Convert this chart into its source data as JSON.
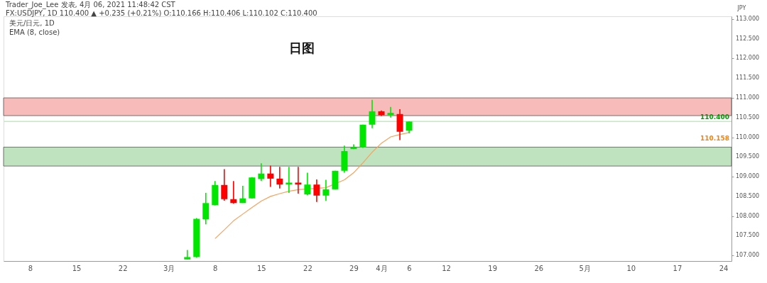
{
  "chart_data": {
    "type": "candlestick",
    "title": "日图",
    "annotations": [
      "Trader_Joe_Lee 发表, 4月 06, 2021 11:48:42 CST",
      "FX:USDJPY, 1D 110.400 ▲ +0.235 (+0.21%) O:110.166 H:110.406 L:110.102 C:110.400",
      "美元/日元, 1D",
      "EMA (8, close)",
      "110.158"
    ],
    "ylabel": "JPY",
    "categories": [
      null,
      null,
      "8",
      null,
      null,
      null,
      null,
      "15",
      null,
      null,
      null,
      null,
      "22",
      null,
      null,
      null,
      null,
      "3月",
      null,
      null,
      null,
      null,
      "8",
      null,
      null,
      null,
      null,
      "15",
      null,
      null,
      null,
      null,
      "22",
      null,
      null,
      null,
      null,
      "29",
      null,
      null,
      "4月",
      null,
      null,
      "6",
      null,
      null,
      null,
      "12",
      null,
      null,
      null,
      null,
      "19",
      null,
      null,
      null,
      null,
      "26",
      null,
      null,
      null,
      null,
      "5月",
      null,
      null,
      null,
      null,
      "10",
      null,
      null,
      null,
      null,
      "17",
      null,
      null,
      null,
      null,
      "24"
    ],
    "series": [
      {
        "ohlc": [
          null,
          null,
          null,
          null,
          null,
          null,
          null,
          null,
          null,
          null,
          null,
          null,
          null,
          null,
          null,
          null,
          null,
          null,
          null,
          [
            106.9,
            107.14,
            106.9,
            106.96
          ],
          [
            106.96,
            107.95,
            106.95,
            107.93
          ],
          [
            107.92,
            108.59,
            107.79,
            108.33
          ],
          [
            108.28,
            108.89,
            108.27,
            108.79
          ],
          [
            108.79,
            109.19,
            108.39,
            108.43
          ],
          [
            108.43,
            108.89,
            108.32,
            108.33
          ],
          [
            108.33,
            108.77,
            108.33,
            108.45
          ],
          [
            108.45,
            108.99,
            108.45,
            108.98
          ],
          [
            108.94,
            109.34,
            108.89,
            109.08
          ],
          [
            109.08,
            109.28,
            108.74,
            108.95
          ],
          [
            108.95,
            109.25,
            108.7,
            108.8
          ],
          [
            108.8,
            109.25,
            108.59,
            108.85
          ],
          [
            108.85,
            109.25,
            108.57,
            108.8
          ],
          [
            108.55,
            109.1,
            108.53,
            108.8
          ],
          [
            108.8,
            108.93,
            108.36,
            108.52
          ],
          [
            108.52,
            108.92,
            108.39,
            108.68
          ],
          [
            108.68,
            109.15,
            108.68,
            109.15
          ],
          [
            109.15,
            109.79,
            109.1,
            109.65
          ],
          [
            109.7,
            109.82,
            109.7,
            109.74
          ],
          [
            109.74,
            110.32,
            109.73,
            110.32
          ],
          [
            110.32,
            110.95,
            110.23,
            110.66
          ],
          [
            110.66,
            110.68,
            110.54,
            110.56
          ],
          [
            110.56,
            110.77,
            110.5,
            110.62
          ],
          [
            110.59,
            110.71,
            109.93,
            110.14
          ],
          [
            110.166,
            110.406,
            110.102,
            110.4
          ],
          null,
          null,
          null,
          null,
          null,
          null,
          null,
          null,
          null,
          null,
          null,
          null,
          null,
          null,
          null,
          null,
          null,
          null,
          null,
          null,
          null,
          null,
          null,
          null,
          null,
          null,
          null,
          null,
          null,
          null,
          null,
          null,
          null,
          null
        ],
        "colors": [
          null,
          null,
          null,
          null,
          null,
          null,
          null,
          null,
          null,
          null,
          null,
          null,
          null,
          null,
          null,
          null,
          null,
          null,
          null,
          "#00e600",
          "#00e600",
          "#00e600",
          "#00e600",
          "#ff0000",
          "#ff0000",
          "#00e600",
          "#00e600",
          "#00e600",
          "#ff0000",
          "#ff0000",
          "#00e600",
          "#ff0000",
          "#00e600",
          "#ff0000",
          "#00e600",
          "#00e600",
          "#00e600",
          "#00e600",
          "#00e600",
          "#00e600",
          "#ff0000",
          "#00e600",
          "#ff0000",
          "#00e600",
          null,
          null,
          null,
          null,
          null,
          null,
          null,
          null,
          null,
          null,
          null,
          null,
          null,
          null,
          null,
          null,
          null,
          null,
          null,
          null,
          null,
          null,
          null,
          null,
          null,
          null,
          null,
          null,
          null,
          null,
          null,
          null,
          null,
          null
        ]
      },
      {
        "type": "line",
        "color": "#f5a25d",
        "values": [
          null,
          null,
          null,
          null,
          null,
          null,
          null,
          null,
          null,
          null,
          null,
          null,
          null,
          null,
          null,
          null,
          null,
          null,
          null,
          null,
          null,
          null,
          107.43,
          107.65,
          107.88,
          108.05,
          108.22,
          108.38,
          108.5,
          108.57,
          108.63,
          108.67,
          null,
          null,
          108.72,
          null,
          108.92,
          109.1,
          109.35,
          109.62,
          109.85,
          110.01,
          110.07,
          110.12,
          null,
          null,
          null,
          null,
          null,
          null,
          null,
          null,
          null,
          null,
          null,
          null,
          null,
          null,
          null,
          null,
          null,
          null,
          null,
          null,
          null,
          null,
          null,
          null,
          null,
          null,
          null,
          null,
          null,
          null,
          null,
          null,
          null,
          null
        ]
      }
    ],
    "ylim": [
      106.86,
      113.07
    ],
    "yticks": [
      {
        "value": 107,
        "label": "107.000"
      },
      {
        "value": 107.5,
        "label": "107.500"
      },
      {
        "value": 108,
        "label": "108.000"
      },
      {
        "value": 108.5,
        "label": "108.500"
      },
      {
        "value": 109,
        "label": "109.000"
      },
      {
        "value": 109.5,
        "label": "109.500"
      },
      {
        "value": 110,
        "label": "110.000"
      },
      {
        "value": 110.5,
        "label": "110.500"
      },
      {
        "value": 111,
        "label": "111.000"
      },
      {
        "value": 111.5,
        "label": "111.500"
      },
      {
        "value": 112,
        "label": "112.000"
      },
      {
        "value": 112.5,
        "label": "112.500"
      },
      {
        "value": 113,
        "label": "113.000"
      }
    ],
    "bands": [
      {
        "axis": "y",
        "from": 110.55,
        "to": 111.0,
        "color": "#f4a6a3"
      },
      {
        "axis": "y",
        "from": 109.27,
        "to": 109.75,
        "color": "#a9d8a9"
      }
    ],
    "ref_lines": [
      {
        "axis": "y",
        "value": 110.4,
        "label": "110.400",
        "color": "#b9f0b9"
      }
    ],
    "grid": false
  }
}
